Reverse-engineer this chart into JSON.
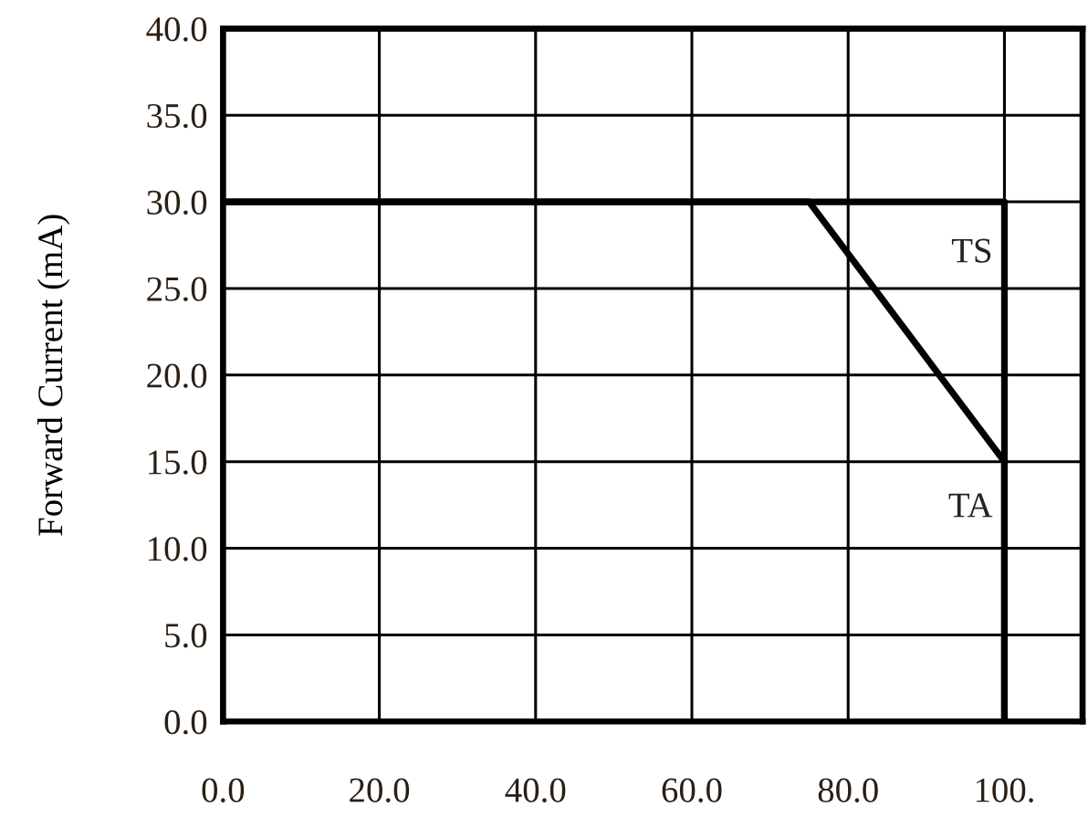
{
  "chart_data": {
    "type": "line",
    "ylabel": "Forward Current (mA)",
    "series": [
      {
        "name": "TS",
        "color": "#000000",
        "x": [
          0,
          100,
          100
        ],
        "values": [
          30,
          30,
          0
        ]
      },
      {
        "name": "TA",
        "color": "#000000",
        "x": [
          0,
          75,
          100,
          100
        ],
        "values": [
          30,
          30,
          15,
          0
        ]
      }
    ],
    "xlim": [
      0,
      110
    ],
    "xticks": [
      {
        "value": 0,
        "label": "0.0"
      },
      {
        "value": 20,
        "label": "20.0"
      },
      {
        "value": 40,
        "label": "40.0"
      },
      {
        "value": 60,
        "label": "60.0"
      },
      {
        "value": 80,
        "label": "80.0"
      },
      {
        "value": 100,
        "label": "100."
      }
    ],
    "ylim": [
      0,
      40
    ],
    "yticks": [
      {
        "value": 0,
        "label": "0.0"
      },
      {
        "value": 5,
        "label": "5.0"
      },
      {
        "value": 10,
        "label": "10.0"
      },
      {
        "value": 15,
        "label": "15.0"
      },
      {
        "value": 20,
        "label": "20.0"
      },
      {
        "value": 25,
        "label": "25.0"
      },
      {
        "value": 30,
        "label": "30.0"
      },
      {
        "value": 35,
        "label": "35.0"
      },
      {
        "value": 40,
        "label": "40.0"
      }
    ],
    "grid": true,
    "marker": "none",
    "line_style": "solid",
    "legend": false
  }
}
